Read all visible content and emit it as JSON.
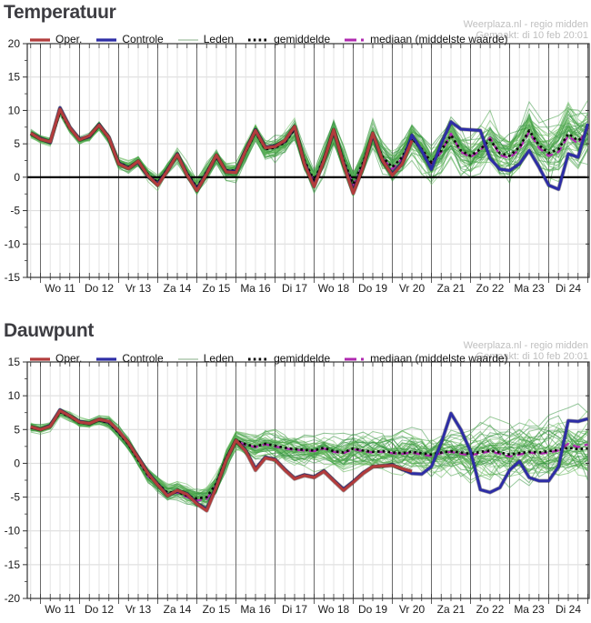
{
  "watermark": {
    "line1": "Weerplaza.nl - regio midden",
    "line2": "Gemaakt: di 10 feb 20:01"
  },
  "legend": {
    "items": [
      {
        "label": "Oper.",
        "color": "#b23c3c",
        "swatch": "line"
      },
      {
        "label": "Controle",
        "color": "#2d2da6",
        "swatch": "line"
      },
      {
        "label": "Leden",
        "color": "#9fbf9f",
        "swatch": "thinline"
      },
      {
        "label": "gemiddelde",
        "color": "#0a0a0a",
        "swatch": "dots"
      },
      {
        "label": "mediaan (middelste waarde)",
        "color": "#b02ab0",
        "swatch": "dashdot"
      }
    ]
  },
  "x_axis": {
    "day_labels": [
      "Wo 11",
      "Do 12",
      "Vr 13",
      "Za 14",
      "Zo 15",
      "Ma 16",
      "Di 17",
      "Wo 18",
      "Do 19",
      "Vr 20",
      "Za 21",
      "Zo 22",
      "Ma 23",
      "Di 24"
    ],
    "minor_step_hours": 6
  },
  "chart_data": [
    {
      "type": "line",
      "title": "Temperatuur",
      "ylim": [
        -15,
        20
      ],
      "yticks": [
        20,
        15,
        10,
        5,
        0,
        -5,
        -10,
        -15
      ],
      "zero_line": true,
      "step_hours": 6,
      "series": [
        {
          "name": "mediaan (middelste waarde)",
          "color": "#b02ab0",
          "width": 2.4,
          "dash": "8 5",
          "start_hour": -6,
          "values": [
            6.5,
            5.7,
            5.2,
            9.9,
            7.4,
            5.6,
            6.0,
            7.8,
            5.8,
            2.1,
            1.4,
            2.2,
            0.3,
            -0.9,
            1.1,
            3.3,
            0.5,
            -1.6,
            0.7,
            3.1,
            0.9,
            0.9,
            3.9,
            6.9,
            4.3,
            4.5,
            5.3,
            7.3,
            2.3,
            -0.7,
            2.6,
            6.9,
            2.3,
            -1.2,
            2.0,
            6.4,
            2.8,
            1.2,
            2.8,
            6.0,
            4.0,
            2.0,
            3.8,
            6.5,
            3.8,
            3.0,
            4.0,
            5.9,
            3.3,
            2.9,
            4.2,
            6.8,
            4.4,
            3.2,
            3.8,
            6.2,
            5.0,
            7.4
          ]
        },
        {
          "name": "gemiddelde",
          "color": "#0a0a0a",
          "width": 2.7,
          "dash": "2.6 3.2",
          "start_hour": -6,
          "values": [
            6.5,
            5.7,
            5.3,
            9.8,
            7.3,
            5.6,
            6.1,
            7.7,
            5.8,
            2.2,
            1.5,
            2.3,
            0.4,
            -0.8,
            1.2,
            3.2,
            0.6,
            -1.5,
            0.8,
            3.0,
            1.0,
            1.0,
            3.8,
            6.8,
            4.2,
            4.4,
            5.2,
            7.2,
            2.5,
            -0.5,
            2.8,
            6.8,
            2.5,
            -1.0,
            2.2,
            6.2,
            3.0,
            1.5,
            3.0,
            5.8,
            4.2,
            2.2,
            4.0,
            6.3,
            4.0,
            3.2,
            4.2,
            5.6,
            3.6,
            3.2,
            4.5,
            7.0,
            4.8,
            3.6,
            4.2,
            6.5,
            5.5,
            6.5
          ]
        },
        {
          "name": "Controle",
          "color": "#2d2da6",
          "width": 3.0,
          "dash": "",
          "start_hour": -6,
          "values": [
            6.6,
            5.8,
            5.2,
            10.4,
            7.5,
            5.7,
            6.1,
            7.9,
            6.0,
            2.1,
            1.4,
            2.3,
            0.1,
            -1.0,
            1.1,
            3.5,
            0.4,
            -1.8,
            0.6,
            3.2,
            0.9,
            0.9,
            4.1,
            7.1,
            4.5,
            4.7,
            5.4,
            7.5,
            2.1,
            -1.2,
            2.6,
            7.0,
            2.1,
            -2.2,
            1.6,
            6.4,
            2.4,
            0.5,
            2.2,
            6.3,
            4.0,
            1.2,
            5.0,
            8.3,
            7.2,
            7.1,
            7.0,
            2.8,
            1.2,
            1.0,
            2.0,
            4.0,
            1.5,
            -1.2,
            -1.8,
            3.5,
            3.0,
            8.0
          ]
        },
        {
          "name": "Oper.",
          "color": "#b23c3c",
          "width": 3.2,
          "dash": "",
          "start_hour": -6,
          "values": [
            6.6,
            5.7,
            5.3,
            10.2,
            7.4,
            5.6,
            6.2,
            7.8,
            5.9,
            2.0,
            1.3,
            2.4,
            0.2,
            -1.2,
            1.0,
            3.4,
            0.3,
            -2.0,
            0.5,
            3.3,
            0.8,
            0.7,
            4.0,
            7.0,
            4.4,
            4.6,
            5.5,
            7.6,
            2.0,
            -1.4,
            2.5,
            7.1,
            2.0,
            -2.4,
            1.5,
            6.6,
            2.5,
            0.3,
            2.0,
            5.5
          ]
        }
      ],
      "members": {
        "name": "Leden",
        "count": 50,
        "seed": 11,
        "amp_start": 0.5,
        "amp_end": 4.6,
        "colors": [
          "#46a046",
          "#5cb052",
          "#2e8f38",
          "#6cc063",
          "#3f9b4b"
        ],
        "opacity": 0.55
      }
    },
    {
      "type": "line",
      "title": "Dauwpunt",
      "ylim": [
        -20,
        15
      ],
      "yticks": [
        15,
        10,
        5,
        0,
        -5,
        -10,
        -15,
        -20
      ],
      "zero_line": false,
      "step_hours": 6,
      "series": [
        {
          "name": "mediaan (middelste waarde)",
          "color": "#b02ab0",
          "width": 2.4,
          "dash": "8 5",
          "start_hour": -6,
          "values": [
            5.3,
            5.0,
            5.5,
            7.7,
            6.9,
            6.1,
            5.9,
            6.4,
            6.0,
            4.6,
            2.9,
            0.6,
            -1.9,
            -3.1,
            -4.6,
            -4.3,
            -5.0,
            -5.5,
            -5.3,
            -3.2,
            0.6,
            3.4,
            2.7,
            2.4,
            2.8,
            2.5,
            2.2,
            2.0,
            1.9,
            1.8,
            2.2,
            1.7,
            1.5,
            2.1,
            1.8,
            1.6,
            1.7,
            1.5,
            1.4,
            1.6,
            1.3,
            1.1,
            1.5,
            1.7,
            1.4,
            1.2,
            1.5,
            1.8,
            1.4,
            1.0,
            1.3,
            1.6,
            1.4,
            1.6,
            1.9,
            2.9,
            2.4,
            2.8
          ]
        },
        {
          "name": "gemiddelde",
          "color": "#0a0a0a",
          "width": 2.7,
          "dash": "2.6 3.2",
          "start_hour": -6,
          "values": [
            5.3,
            5.0,
            5.5,
            7.6,
            6.9,
            6.0,
            5.9,
            6.4,
            6.0,
            4.5,
            2.8,
            0.5,
            -1.8,
            -3.0,
            -4.4,
            -4.2,
            -4.8,
            -5.2,
            -5.0,
            -3.0,
            0.8,
            3.4,
            2.8,
            2.5,
            2.9,
            2.6,
            2.3,
            2.1,
            2.0,
            1.9,
            2.3,
            1.8,
            1.6,
            2.2,
            1.9,
            1.7,
            1.8,
            1.6,
            1.5,
            1.7,
            1.5,
            1.3,
            1.6,
            1.8,
            1.6,
            1.4,
            1.7,
            1.9,
            1.6,
            1.3,
            1.5,
            1.7,
            1.6,
            1.8,
            2.0,
            2.3,
            2.1,
            2.2
          ]
        },
        {
          "name": "Controle",
          "color": "#2d2da6",
          "width": 3.0,
          "dash": "",
          "start_hour": -6,
          "values": [
            5.4,
            5.0,
            5.6,
            7.9,
            7.0,
            6.2,
            5.9,
            6.5,
            6.1,
            4.7,
            3.0,
            0.9,
            -1.4,
            -3.1,
            -4.7,
            -4.1,
            -4.5,
            -5.9,
            -6.8,
            -3.4,
            0.6,
            3.4,
            1.9,
            -0.8,
            0.9,
            0.6,
            -0.9,
            -2.2,
            -1.7,
            -2.0,
            -1.1,
            -2.5,
            -3.8,
            -2.7,
            -1.4,
            -0.5,
            -0.4,
            -0.2,
            -0.9,
            -1.5,
            -1.6,
            -0.5,
            3.0,
            7.4,
            5.0,
            1.8,
            -3.9,
            -4.3,
            -3.6,
            -1.0,
            0.3,
            -2.1,
            -2.6,
            -2.6,
            -0.5,
            6.3,
            6.2,
            6.6
          ]
        },
        {
          "name": "Oper.",
          "color": "#b23c3c",
          "width": 3.2,
          "dash": "",
          "start_hour": -6,
          "values": [
            5.4,
            5.0,
            5.5,
            7.8,
            7.0,
            6.1,
            5.9,
            6.5,
            6.2,
            4.8,
            3.0,
            0.8,
            -1.5,
            -3.2,
            -4.8,
            -4.0,
            -4.6,
            -6.0,
            -7.0,
            -3.5,
            0.5,
            3.4,
            1.8,
            -1.0,
            0.8,
            0.5,
            -1.0,
            -2.3,
            -1.8,
            -2.1,
            -1.2,
            -2.6,
            -4.0,
            -2.8,
            -1.5,
            -0.5,
            -0.4,
            -0.3,
            -0.8,
            -1.2
          ]
        }
      ],
      "members": {
        "name": "Leden",
        "count": 50,
        "seed": 23,
        "amp_start": 0.6,
        "amp_end": 5.2,
        "colors": [
          "#46a046",
          "#5cb052",
          "#2e8f38",
          "#6cc063",
          "#3f9b4b"
        ],
        "opacity": 0.55
      }
    }
  ],
  "style_colors": {
    "day_gridline": "#6a6a6a",
    "minor_gridline": "#e3e3e3",
    "h_gridline": "#d9d9d9",
    "axis_frame": "#333333",
    "zero_line": "#000000",
    "tick_label": "#1a1a1a",
    "title": "#3d3d42",
    "watermark": "#bfbfbf"
  }
}
